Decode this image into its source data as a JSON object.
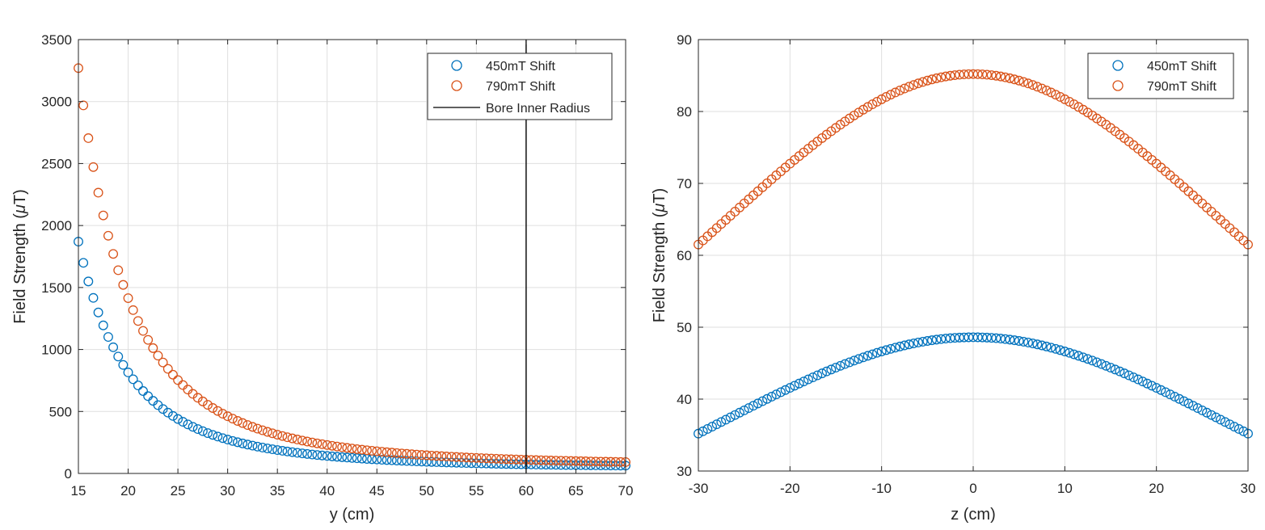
{
  "chart_data": [
    {
      "type": "scatter",
      "title": "",
      "xlabel": "y (cm)",
      "ylabel": "Field Strength (μT)",
      "ylabel_parts": [
        "Field Strength (",
        "μ",
        "T)"
      ],
      "xlim": [
        15,
        70
      ],
      "ylim": [
        0,
        3500
      ],
      "xticks": [
        15,
        20,
        25,
        30,
        35,
        40,
        45,
        50,
        55,
        60,
        65,
        70
      ],
      "yticks": [
        0,
        500,
        1000,
        1500,
        2000,
        2500,
        3000,
        3500
      ],
      "grid": true,
      "legend_position": "top-right",
      "x": {
        "start": 15,
        "end": 70,
        "step": 0.5
      },
      "series": [
        {
          "name": "450mT Shift",
          "color": "#0072BD",
          "marker": "circle-open",
          "model": {
            "kind": "power",
            "ref_x": 15,
            "ref_value": 1870,
            "exponent": -3.0,
            "offset": 45
          }
        },
        {
          "name": "790mT Shift",
          "color": "#D95319",
          "marker": "circle-open",
          "model": {
            "kind": "power",
            "ref_x": 15,
            "ref_value": 3270,
            "exponent": -3.0,
            "offset": 60
          }
        }
      ],
      "reference_lines": [
        {
          "name": "Bore Inner Radius",
          "orientation": "vertical",
          "x": 60,
          "color": "#000000"
        }
      ]
    },
    {
      "type": "scatter",
      "title": "",
      "xlabel": "z (cm)",
      "ylabel": "Field Strength (μT)",
      "ylabel_parts": [
        "Field Strength (",
        "μ",
        "T)"
      ],
      "xlim": [
        -30,
        30
      ],
      "ylim": [
        30,
        90
      ],
      "xticks": [
        -30,
        -20,
        -10,
        0,
        10,
        20,
        30
      ],
      "yticks": [
        30,
        40,
        50,
        60,
        70,
        80,
        90
      ],
      "grid": true,
      "legend_position": "top-right",
      "x": {
        "start": -30,
        "end": 30,
        "step": 0.5
      },
      "series": [
        {
          "name": "450mT Shift",
          "color": "#0072BD",
          "marker": "circle-open",
          "model": {
            "kind": "lorentzian",
            "peak": 48.6,
            "edge_x": 30,
            "edge_value": 35.2
          }
        },
        {
          "name": "790mT Shift",
          "color": "#D95319",
          "marker": "circle-open",
          "model": {
            "kind": "lorentzian",
            "peak": 85.2,
            "edge_x": 30,
            "edge_value": 61.5
          }
        }
      ],
      "reference_lines": []
    }
  ]
}
